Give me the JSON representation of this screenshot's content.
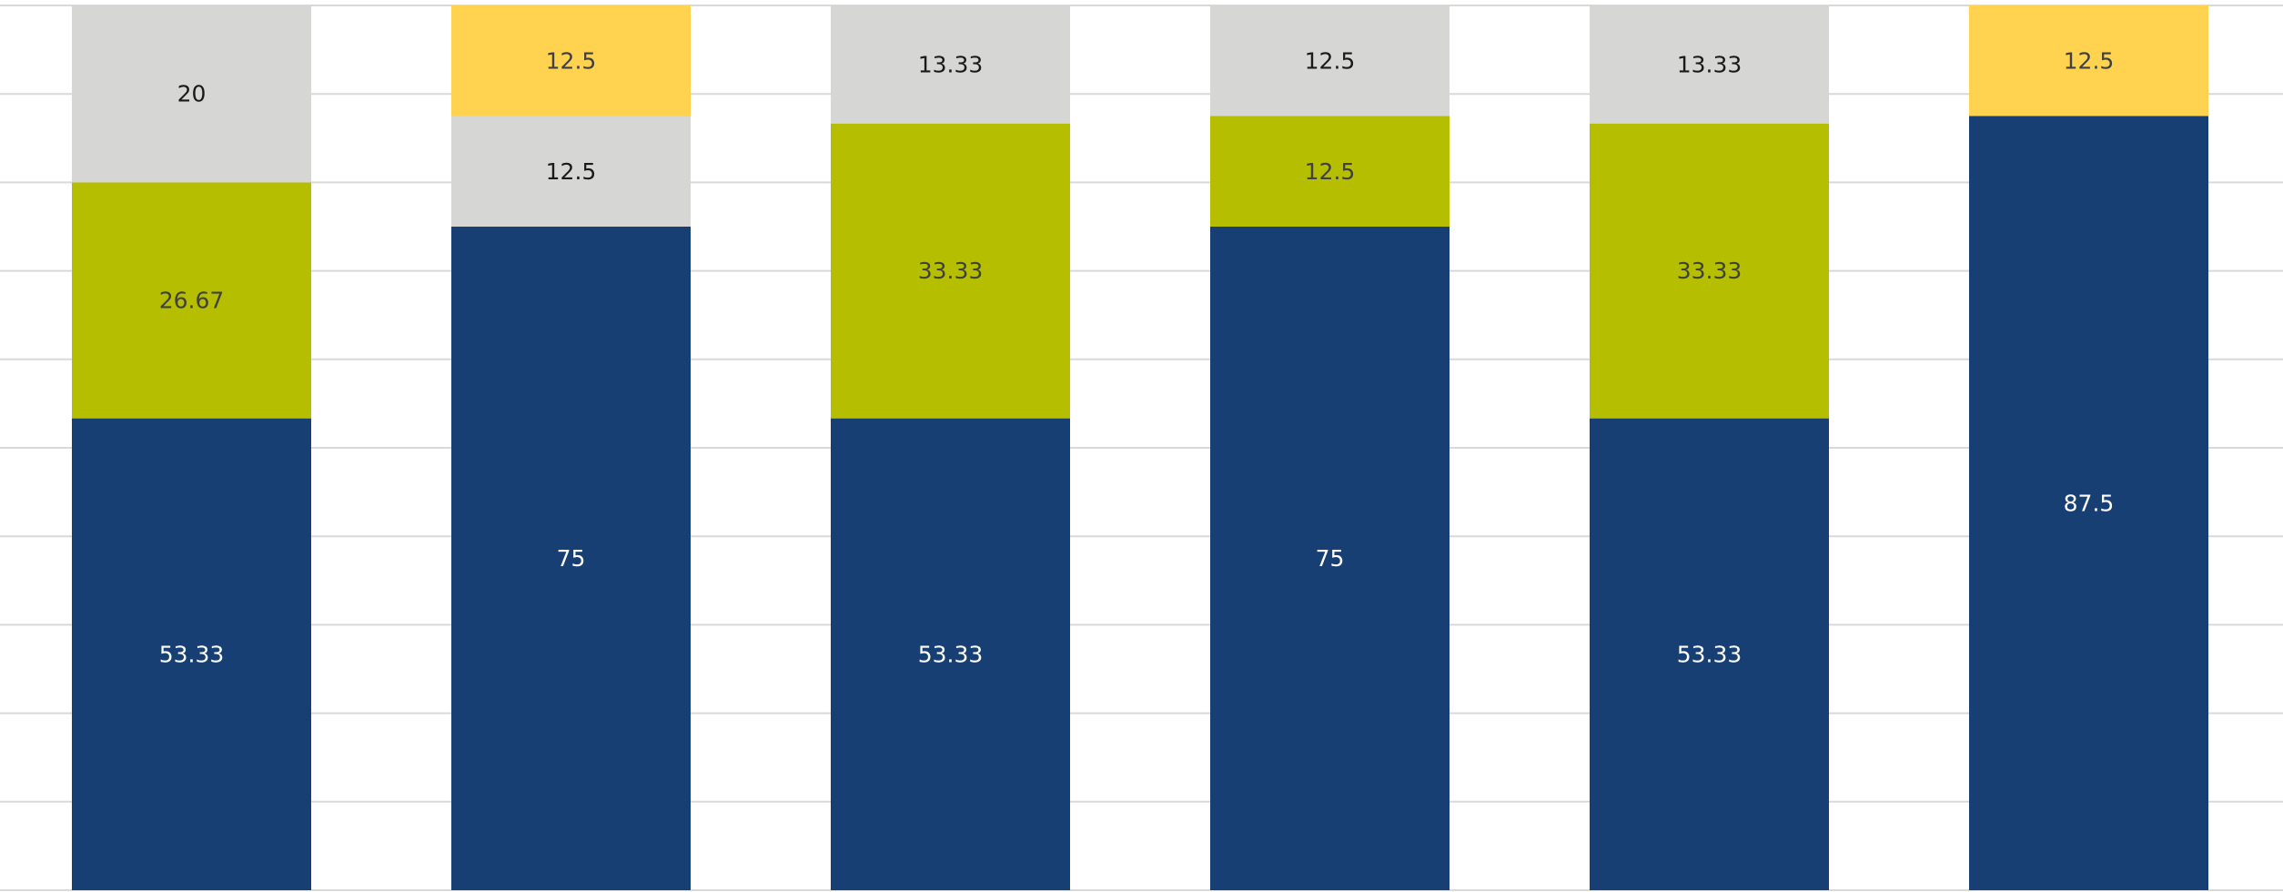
{
  "chart_data": {
    "type": "bar",
    "stacked": true,
    "orientation": "vertical",
    "categories": [
      "",
      "",
      "",
      "",
      "",
      ""
    ],
    "ylim": [
      0,
      100
    ],
    "grid": true,
    "legend": "none",
    "series": [
      {
        "color": "#173f73",
        "label_color": "#ffffff",
        "values": [
          53.33,
          75,
          53.33,
          75,
          53.33,
          87.5
        ],
        "labels": [
          "53.33",
          "75",
          "53.33",
          "75",
          "53.33",
          "87.5"
        ]
      },
      {
        "color": "#b5bf00",
        "label_color": "#404040",
        "values": [
          26.67,
          0,
          33.33,
          12.5,
          33.33,
          0
        ],
        "labels": [
          "26.67",
          "",
          "33.33",
          "12.5",
          "33.33",
          ""
        ]
      },
      {
        "color": "#d6d6d4",
        "label_color": "#1a1a1a",
        "values": [
          20,
          12.5,
          13.33,
          12.5,
          13.33,
          0
        ],
        "labels": [
          "20",
          "12.5",
          "13.33",
          "12.5",
          "13.33",
          ""
        ]
      },
      {
        "color": "#ffd34f",
        "label_color": "#404040",
        "values": [
          0,
          12.5,
          0,
          0,
          0,
          12.5
        ],
        "labels": [
          "",
          "12.5",
          "",
          "",
          "",
          "12.5"
        ]
      }
    ],
    "gridline_color": "#d9d9d9"
  }
}
